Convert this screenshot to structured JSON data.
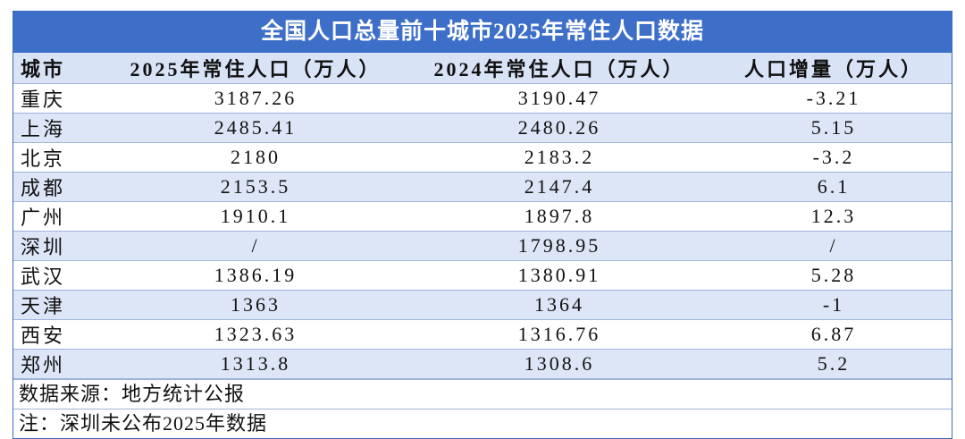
{
  "title": "全国人口总量前十城市2025年常住人口数据",
  "table": {
    "header": [
      "城市",
      "2025年常住人口（万人）",
      "2024年常住人口（万人）",
      "人口增量（万人）"
    ],
    "rows": [
      [
        "重庆",
        "3187.26",
        "3190.47",
        "-3.21"
      ],
      [
        "上海",
        "2485.41",
        "2480.26",
        "5.15"
      ],
      [
        "北京",
        "2180",
        "2183.2",
        "-3.2"
      ],
      [
        "成都",
        "2153.5",
        "2147.4",
        "6.1"
      ],
      [
        "广州",
        "1910.1",
        "1897.8",
        "12.3"
      ],
      [
        "深圳",
        "/",
        "1798.95",
        "/"
      ],
      [
        "武汉",
        "1386.19",
        "1380.91",
        "5.28"
      ],
      [
        "天津",
        "1363",
        "1364",
        "-1"
      ],
      [
        "西安",
        "1323.63",
        "1316.76",
        "6.87"
      ],
      [
        "郑州",
        "1313.8",
        "1308.6",
        "5.2"
      ]
    ]
  },
  "footer": [
    "数据来源：地方统计公报",
    "注：深圳未公布2025年数据"
  ]
}
